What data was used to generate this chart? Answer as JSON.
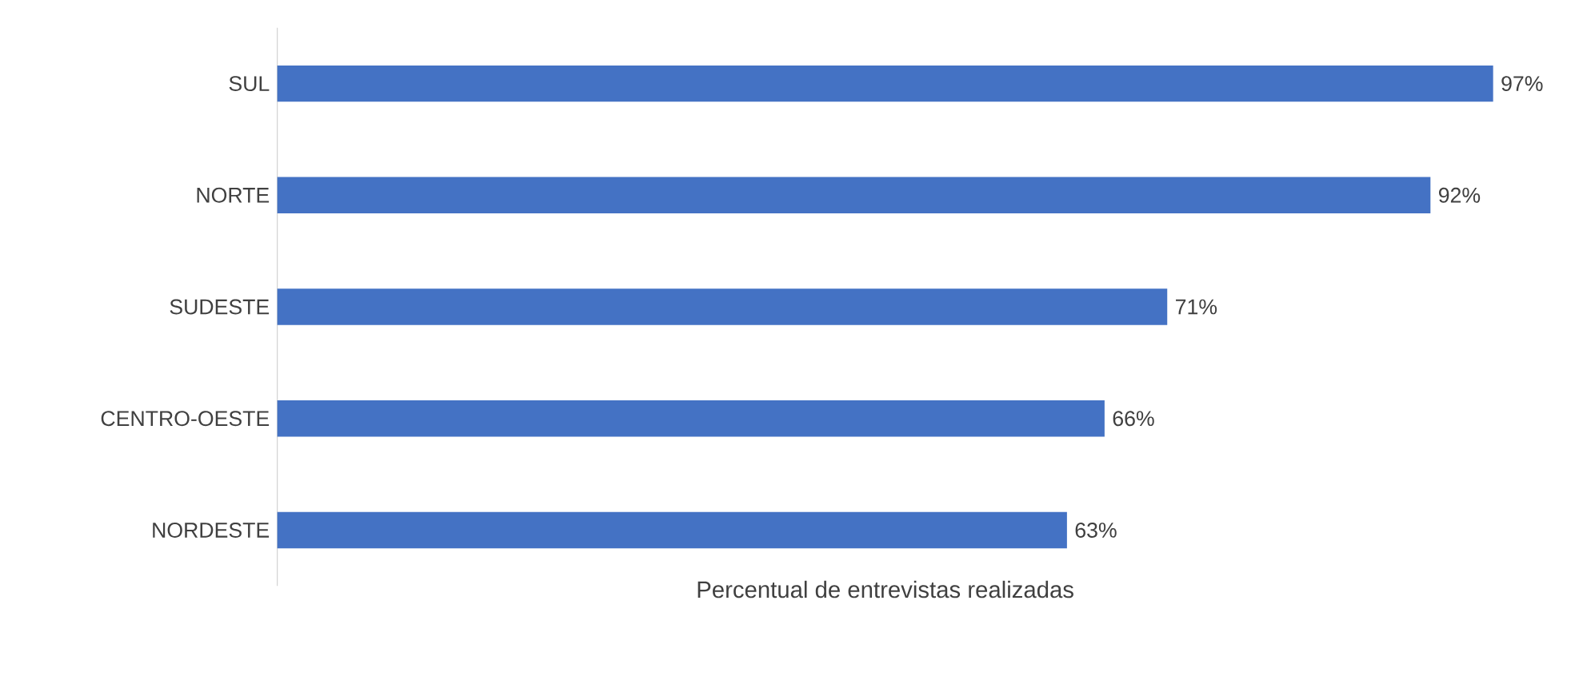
{
  "chart_data": {
    "type": "bar",
    "orientation": "horizontal",
    "xlabel": "Percentual de entrevistas realizadas",
    "categories": [
      "SUL",
      "NORTE",
      "SUDESTE",
      "CENTRO-OESTE",
      "NORDESTE"
    ],
    "values": [
      97,
      92,
      71,
      66,
      63
    ],
    "color": "#4472c4",
    "value_labels": [
      "97%",
      "92%",
      "71%",
      "66%",
      "63%"
    ]
  }
}
